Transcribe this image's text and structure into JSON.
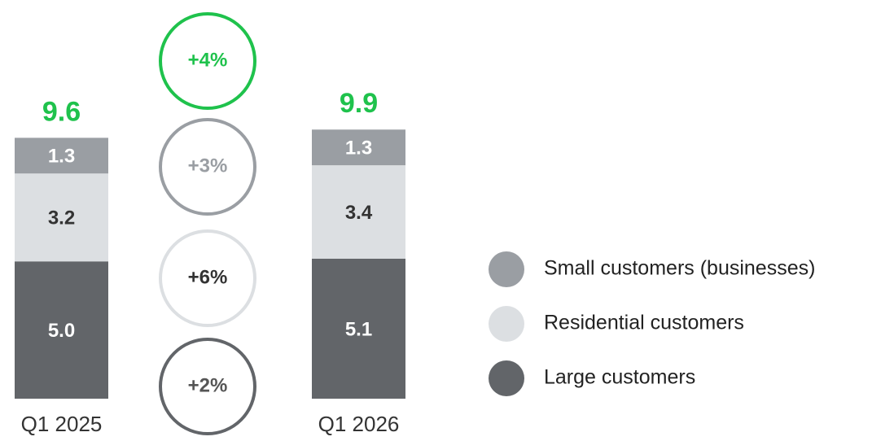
{
  "chart_data": {
    "type": "stacked_bar",
    "categories": [
      "Q1 2025",
      "Q1 2026"
    ],
    "series": [
      {
        "name": "Large customers",
        "color": "#626569",
        "label_color": "#ffffff",
        "values": [
          5.0,
          5.1
        ],
        "value_labels": [
          "5.0",
          "5.1"
        ],
        "change": "+2%",
        "change_color": "#626569",
        "change_text_color": "#555555"
      },
      {
        "name": "Residential customers",
        "color": "#dcdfe2",
        "label_color": "#333333",
        "values": [
          3.2,
          3.4
        ],
        "value_labels": [
          "3.2",
          "3.4"
        ],
        "change": "+6%",
        "change_color": "#dcdfe2",
        "change_text_color": "#333333"
      },
      {
        "name": "Small customers (businesses)",
        "color": "#9a9ea3",
        "label_color": "#ffffff",
        "values": [
          1.3,
          1.3
        ],
        "value_labels": [
          "1.3",
          "1.3"
        ],
        "change": "+3%",
        "change_color": "#9a9ea3",
        "change_text_color": "#9a9ea3"
      }
    ],
    "totals": [
      9.6,
      9.9
    ],
    "total_change": "+4%",
    "total_color": "#1fc24c"
  }
}
